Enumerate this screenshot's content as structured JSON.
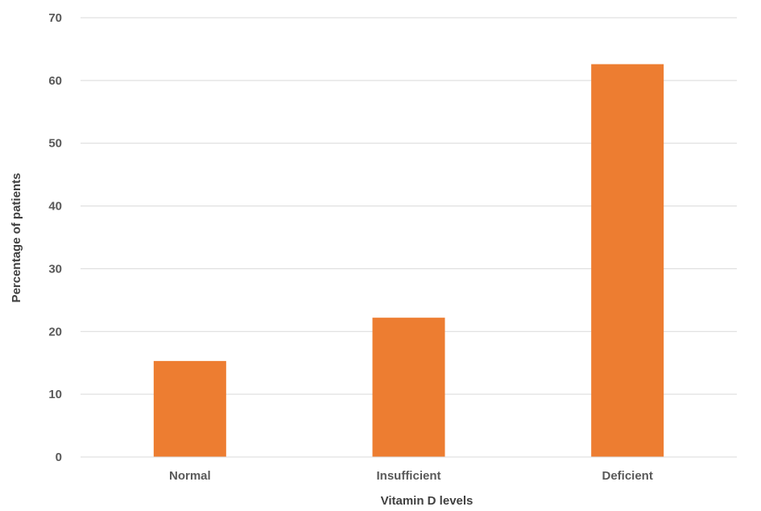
{
  "chart_data": {
    "type": "bar",
    "title": "",
    "xlabel": "Vitamin D levels",
    "ylabel": "Percentage of patients",
    "categories": [
      "Normal",
      "Insufficient",
      "Deficient"
    ],
    "series": [
      {
        "values": [
          15.3,
          22.2,
          62.6
        ],
        "color": "#ED7D31"
      }
    ],
    "ylim": [
      0,
      70
    ],
    "yticks": [
      "0",
      "10",
      "20",
      "30",
      "40",
      "50",
      "60",
      "70"
    ],
    "grid": true,
    "legend": "none"
  }
}
